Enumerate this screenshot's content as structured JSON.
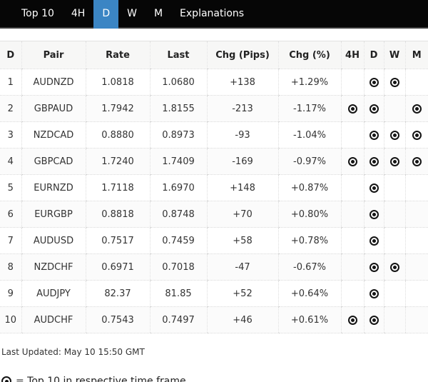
{
  "nav": {
    "tabs": [
      {
        "id": "top10",
        "label": "Top 10",
        "active": false
      },
      {
        "id": "4h",
        "label": "4H",
        "active": false
      },
      {
        "id": "d",
        "label": "D",
        "active": true
      },
      {
        "id": "w",
        "label": "W",
        "active": false
      },
      {
        "id": "m",
        "label": "M",
        "active": false
      },
      {
        "id": "explanations",
        "label": "Explanations",
        "active": false
      }
    ]
  },
  "table": {
    "columns": [
      "D",
      "Pair",
      "Rate",
      "Last",
      "Chg (Pips)",
      "Chg (%)",
      "4H",
      "D",
      "W",
      "M"
    ],
    "rows": [
      {
        "rank": "1",
        "pair": "AUDNZD",
        "rate": "1.0818",
        "last": "1.0680",
        "chg_pips": "+138",
        "chg_pct": "+1.29%",
        "markers": {
          "h4": false,
          "d": true,
          "w": true,
          "m": false
        }
      },
      {
        "rank": "2",
        "pair": "GBPAUD",
        "rate": "1.7942",
        "last": "1.8155",
        "chg_pips": "-213",
        "chg_pct": "-1.17%",
        "markers": {
          "h4": true,
          "d": true,
          "w": false,
          "m": true
        }
      },
      {
        "rank": "3",
        "pair": "NZDCAD",
        "rate": "0.8880",
        "last": "0.8973",
        "chg_pips": "-93",
        "chg_pct": "-1.04%",
        "markers": {
          "h4": false,
          "d": true,
          "w": true,
          "m": true
        }
      },
      {
        "rank": "4",
        "pair": "GBPCAD",
        "rate": "1.7240",
        "last": "1.7409",
        "chg_pips": "-169",
        "chg_pct": "-0.97%",
        "markers": {
          "h4": true,
          "d": true,
          "w": true,
          "m": true
        }
      },
      {
        "rank": "5",
        "pair": "EURNZD",
        "rate": "1.7118",
        "last": "1.6970",
        "chg_pips": "+148",
        "chg_pct": "+0.87%",
        "markers": {
          "h4": false,
          "d": true,
          "w": false,
          "m": false
        }
      },
      {
        "rank": "6",
        "pair": "EURGBP",
        "rate": "0.8818",
        "last": "0.8748",
        "chg_pips": "+70",
        "chg_pct": "+0.80%",
        "markers": {
          "h4": false,
          "d": true,
          "w": false,
          "m": false
        }
      },
      {
        "rank": "7",
        "pair": "AUDUSD",
        "rate": "0.7517",
        "last": "0.7459",
        "chg_pips": "+58",
        "chg_pct": "+0.78%",
        "markers": {
          "h4": false,
          "d": true,
          "w": false,
          "m": false
        }
      },
      {
        "rank": "8",
        "pair": "NZDCHF",
        "rate": "0.6971",
        "last": "0.7018",
        "chg_pips": "-47",
        "chg_pct": "-0.67%",
        "markers": {
          "h4": false,
          "d": true,
          "w": true,
          "m": false
        }
      },
      {
        "rank": "9",
        "pair": "AUDJPY",
        "rate": "82.37",
        "last": "81.85",
        "chg_pips": "+52",
        "chg_pct": "+0.64%",
        "markers": {
          "h4": false,
          "d": true,
          "w": false,
          "m": false
        }
      },
      {
        "rank": "10",
        "pair": "AUDCHF",
        "rate": "0.7543",
        "last": "0.7497",
        "chg_pips": "+46",
        "chg_pct": "+0.61%",
        "markers": {
          "h4": true,
          "d": true,
          "w": false,
          "m": false
        }
      }
    ]
  },
  "footer": {
    "last_updated": "Last Updated: May 10 15:50 GMT"
  },
  "legend": {
    "text": "= Top 10 in respective time frame"
  },
  "colors": {
    "accent_blue": "#3b85c4",
    "nav_background": "#060606",
    "header_background": "#f7f7f6",
    "marker": "#141414"
  }
}
